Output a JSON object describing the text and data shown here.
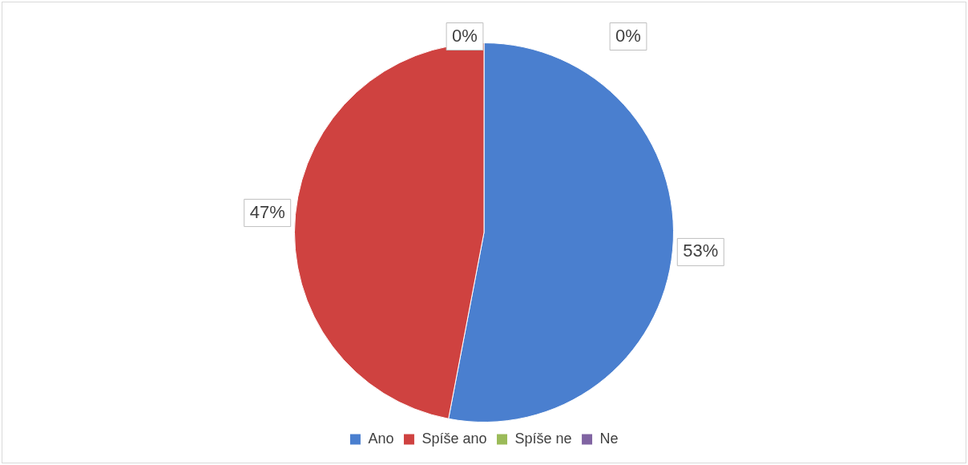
{
  "chart_data": {
    "type": "pie",
    "categories": [
      "Ano",
      "Spíše ano",
      "Spíše ne",
      "Ne"
    ],
    "values": [
      53,
      47,
      0,
      0
    ],
    "value_labels": [
      "53%",
      "47%",
      "0%",
      "0%"
    ],
    "colors": [
      "#4a7fcf",
      "#cf4240",
      "#9bbb59",
      "#8064a2"
    ],
    "legend": "bottom"
  }
}
